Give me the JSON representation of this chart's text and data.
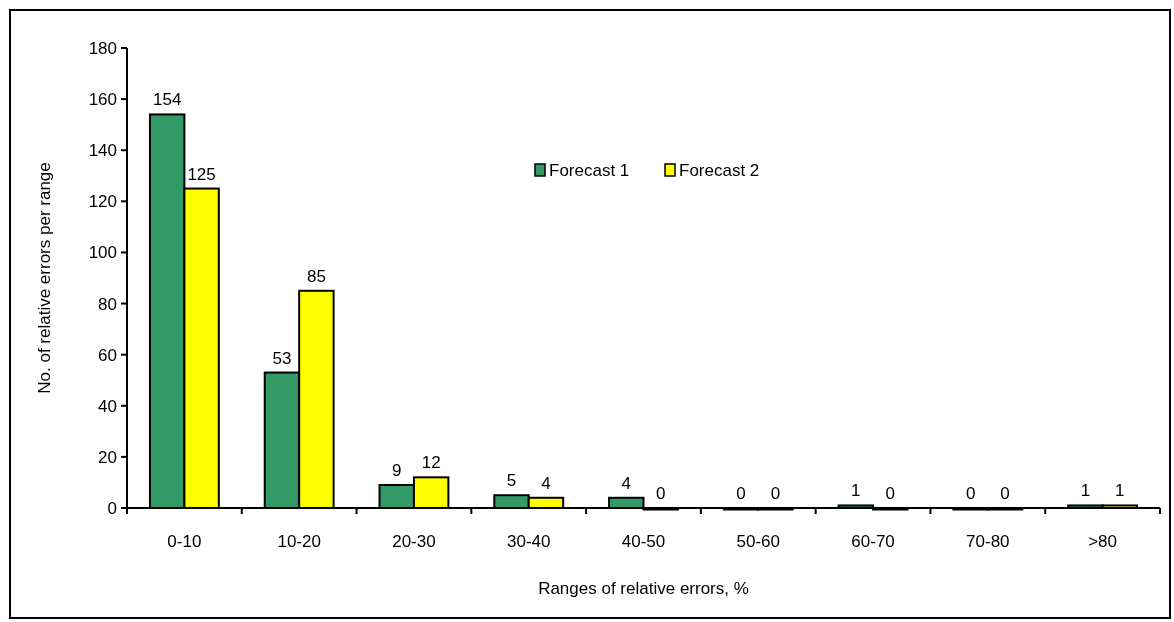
{
  "chart_data": {
    "type": "bar",
    "xlabel": "Ranges of relative errors, %",
    "ylabel": "No. of relative errors per range",
    "categories": [
      "0-10",
      "10-20",
      "20-30",
      "30-40",
      "40-50",
      "50-60",
      "60-70",
      "70-80",
      ">80"
    ],
    "series": [
      {
        "name": "Forecast 1",
        "color": "#339966",
        "values": [
          154,
          53,
          9,
          5,
          4,
          0,
          1,
          0,
          1
        ]
      },
      {
        "name": "Forecast 2",
        "color": "#ffff00",
        "values": [
          125,
          85,
          12,
          4,
          0,
          0,
          0,
          0,
          1
        ]
      }
    ],
    "ylim": [
      0,
      180
    ],
    "yticks": [
      0,
      20,
      40,
      60,
      80,
      100,
      120,
      140,
      160,
      180
    ],
    "grid": false,
    "legend": "top",
    "data_labels": true
  }
}
